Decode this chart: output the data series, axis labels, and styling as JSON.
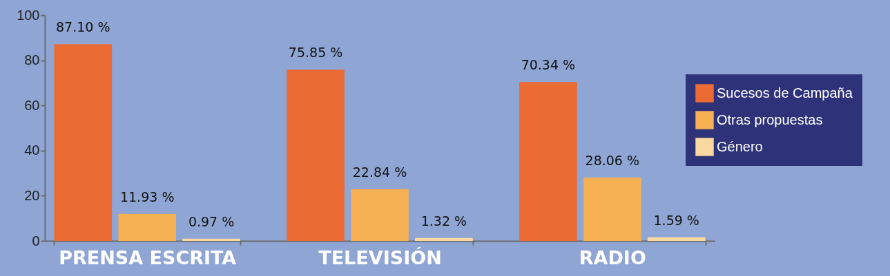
{
  "chart_data": {
    "type": "bar",
    "categories": [
      "PRENSA ESCRITA",
      "TELEVISIÓN",
      "RADIO"
    ],
    "series": [
      {
        "name": "Sucesos de Campaña",
        "color": "#ec6a33",
        "values": [
          87.1,
          75.85,
          70.34
        ],
        "value_labels": [
          "87.10 %",
          "75.85 %",
          "70.34 %"
        ]
      },
      {
        "name": "Otras propuestas",
        "color": "#f6b053",
        "values": [
          11.93,
          22.84,
          28.06
        ],
        "value_labels": [
          "11.93 %",
          "22.84 %",
          "28.06 %"
        ]
      },
      {
        "name": "Género",
        "color": "#fbd8a0",
        "values": [
          0.97,
          1.32,
          1.59
        ],
        "value_labels": [
          "0.97 %",
          "1.32 %",
          "1.59 %"
        ]
      }
    ],
    "ylim": [
      0,
      100
    ],
    "yticks": [
      0,
      20,
      40,
      60,
      80,
      100
    ],
    "grid": false,
    "legend": "right"
  }
}
